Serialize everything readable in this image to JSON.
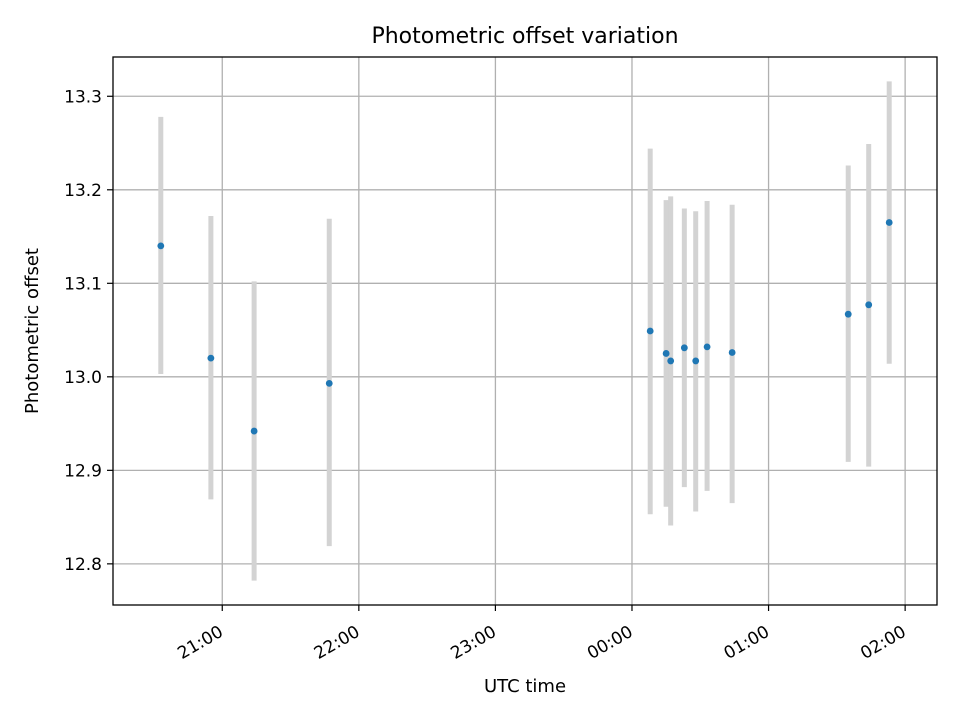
{
  "chart_data": {
    "type": "scatter",
    "title": "Photometric offset variation",
    "xlabel": "UTC time",
    "ylabel": "Photometric offset",
    "x_axis": {
      "kind": "time",
      "ticks": [
        "21:00",
        "22:00",
        "23:00",
        "00:00",
        "01:00",
        "02:00"
      ],
      "xlim": [
        "20:12",
        "02:14"
      ],
      "tick_label_rotation": "30deg"
    },
    "y_axis": {
      "ticks": [
        "12.8",
        "12.9",
        "13.0",
        "13.1",
        "13.2",
        "13.3"
      ],
      "ylim": [
        12.756,
        13.342
      ]
    },
    "grid": true,
    "series": [
      {
        "marker_color": "#1f77b4",
        "errorbar_color": "#d3d3d3",
        "points": [
          {
            "x": "20:33",
            "y": 13.14,
            "yerr_low": 13.003,
            "yerr_high": 13.278
          },
          {
            "x": "20:55",
            "y": 13.02,
            "yerr_low": 12.869,
            "yerr_high": 13.172
          },
          {
            "x": "21:14",
            "y": 12.942,
            "yerr_low": 12.782,
            "yerr_high": 13.102
          },
          {
            "x": "21:47",
            "y": 12.993,
            "yerr_low": 12.819,
            "yerr_high": 13.169
          },
          {
            "x": "00:08",
            "y": 13.049,
            "yerr_low": 12.853,
            "yerr_high": 13.244
          },
          {
            "x": "00:15",
            "y": 13.025,
            "yerr_low": 12.861,
            "yerr_high": 13.189
          },
          {
            "x": "00:17",
            "y": 13.017,
            "yerr_low": 12.841,
            "yerr_high": 13.193
          },
          {
            "x": "00:23",
            "y": 13.031,
            "yerr_low": 12.882,
            "yerr_high": 13.18
          },
          {
            "x": "00:28",
            "y": 13.017,
            "yerr_low": 12.856,
            "yerr_high": 13.177
          },
          {
            "x": "00:33",
            "y": 13.032,
            "yerr_low": 12.878,
            "yerr_high": 13.188
          },
          {
            "x": "00:44",
            "y": 13.026,
            "yerr_low": 12.865,
            "yerr_high": 13.184
          },
          {
            "x": "01:35",
            "y": 13.067,
            "yerr_low": 12.909,
            "yerr_high": 13.226
          },
          {
            "x": "01:44",
            "y": 13.077,
            "yerr_low": 12.904,
            "yerr_high": 13.249
          },
          {
            "x": "01:53",
            "y": 13.165,
            "yerr_low": 13.014,
            "yerr_high": 13.316
          }
        ]
      }
    ]
  }
}
